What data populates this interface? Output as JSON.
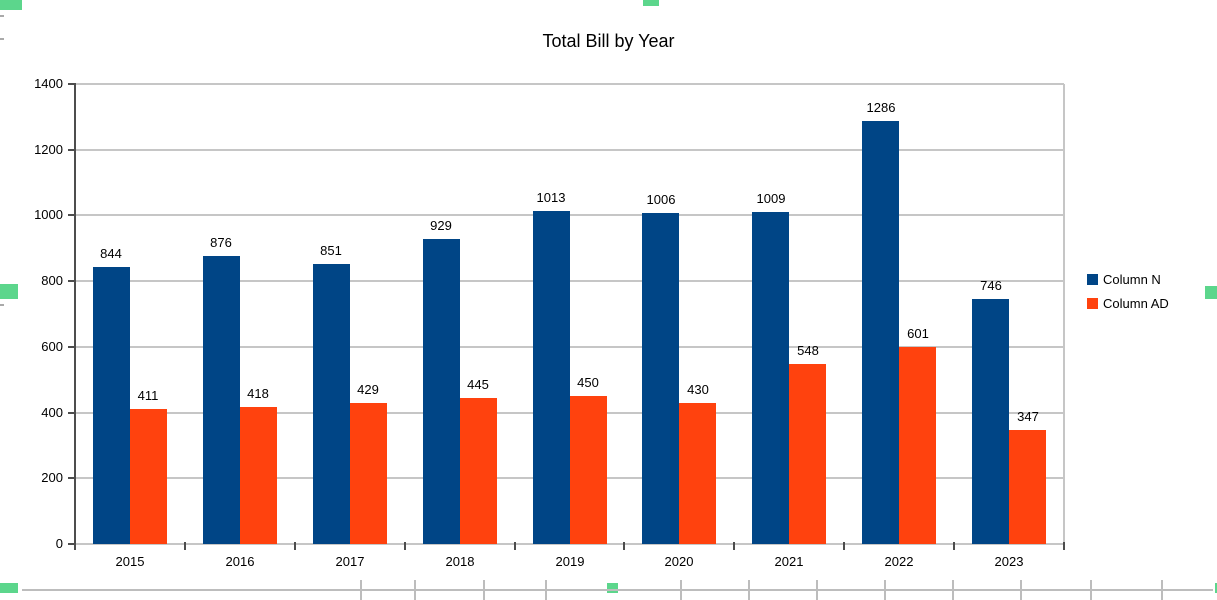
{
  "chart_data": {
    "type": "bar",
    "title": "Total Bill by Year",
    "categories": [
      "2015",
      "2016",
      "2017",
      "2018",
      "2019",
      "2020",
      "2021",
      "2022",
      "2023"
    ],
    "series": [
      {
        "name": "Column N",
        "color": "#004586",
        "values": [
          844,
          876,
          851,
          929,
          1013,
          1006,
          1009,
          1286,
          746
        ]
      },
      {
        "name": "Column AD",
        "color": "#FF420E",
        "values": [
          411,
          418,
          429,
          445,
          450,
          430,
          548,
          601,
          347
        ]
      }
    ],
    "xlabel": "",
    "ylabel": "",
    "ylim": [
      0,
      1400
    ],
    "yticks": [
      0,
      200,
      400,
      600,
      800,
      1000,
      1200,
      1400
    ],
    "grid": "horizontal",
    "legend_position": "right",
    "data_labels": true
  },
  "colors": {
    "series1": "#004586",
    "series2": "#FF420E",
    "gridline": "#c6c6c6",
    "axis": "#4d4d4d",
    "selection_handle": "#5cd68c",
    "sheet_grid": "#bdbdbd"
  }
}
